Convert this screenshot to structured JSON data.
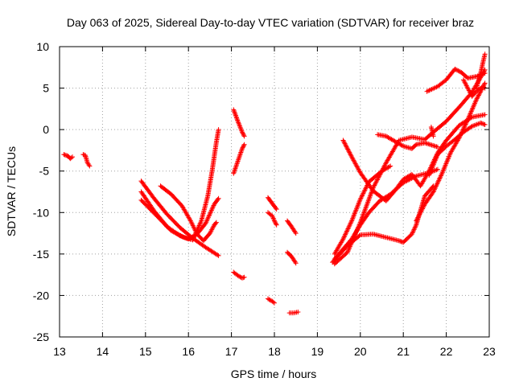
{
  "chart_data": {
    "type": "scatter",
    "title": "Day 063 of 2025, Sidereal Day-to-day VTEC variation (SDTVAR) for receiver braz",
    "xlabel": "GPS time / hours",
    "ylabel": "SDTVAR / TECUs",
    "xlim": [
      13,
      23
    ],
    "ylim": [
      -25,
      10
    ],
    "xticks": [
      13,
      14,
      15,
      16,
      17,
      18,
      19,
      20,
      21,
      22,
      23
    ],
    "yticks": [
      -25,
      -20,
      -15,
      -10,
      -5,
      0,
      5,
      10
    ],
    "grid": true,
    "marker": "+",
    "color": "#ff0000",
    "series": [
      {
        "name": "s1",
        "points": [
          [
            13.1,
            -3.0
          ],
          [
            13.2,
            -3.2
          ],
          [
            13.25,
            -3.5
          ],
          [
            13.3,
            -3.3
          ]
        ]
      },
      {
        "name": "s2",
        "points": [
          [
            13.55,
            -3.0
          ],
          [
            13.6,
            -3.1
          ],
          [
            13.65,
            -4.0
          ],
          [
            13.7,
            -4.4
          ]
        ]
      },
      {
        "name": "s3",
        "points": [
          [
            14.9,
            -6.2
          ],
          [
            15.2,
            -8.3
          ],
          [
            15.5,
            -10.2
          ],
          [
            15.8,
            -11.8
          ],
          [
            16.1,
            -13.1
          ],
          [
            16.4,
            -14.2
          ],
          [
            16.7,
            -15.2
          ]
        ]
      },
      {
        "name": "s4",
        "points": [
          [
            14.9,
            -7.5
          ],
          [
            15.2,
            -9.8
          ],
          [
            15.5,
            -11.7
          ],
          [
            15.8,
            -12.8
          ],
          [
            16.0,
            -13.2
          ],
          [
            16.2,
            -12.6
          ],
          [
            16.4,
            -11.3
          ],
          [
            16.6,
            -9.0
          ],
          [
            16.7,
            -8.3
          ]
        ]
      },
      {
        "name": "s5",
        "points": [
          [
            14.9,
            -8.5
          ],
          [
            15.3,
            -10.6
          ],
          [
            15.6,
            -12.2
          ],
          [
            15.9,
            -13.0
          ],
          [
            16.1,
            -13.3
          ],
          [
            16.3,
            -11.0
          ],
          [
            16.45,
            -8.0
          ],
          [
            16.55,
            -5.0
          ],
          [
            16.65,
            -1.5
          ],
          [
            16.7,
            0
          ]
        ]
      },
      {
        "name": "s6",
        "points": [
          [
            15.35,
            -6.8
          ],
          [
            15.6,
            -7.8
          ],
          [
            15.85,
            -9.2
          ],
          [
            16.05,
            -11.0
          ],
          [
            16.2,
            -12.6
          ],
          [
            16.35,
            -13.4
          ],
          [
            16.5,
            -12.5
          ],
          [
            16.6,
            -11.5
          ],
          [
            16.65,
            -11.2
          ]
        ]
      },
      {
        "name": "s7",
        "points": [
          [
            17.05,
            2.4
          ],
          [
            17.15,
            1.0
          ],
          [
            17.25,
            -0.3
          ],
          [
            17.3,
            -0.8
          ]
        ]
      },
      {
        "name": "s8",
        "points": [
          [
            17.05,
            -5.3
          ],
          [
            17.15,
            -3.8
          ],
          [
            17.25,
            -2.3
          ],
          [
            17.3,
            -1.8
          ]
        ]
      },
      {
        "name": "s9",
        "points": [
          [
            17.05,
            -17.2
          ],
          [
            17.15,
            -17.6
          ],
          [
            17.25,
            -17.9
          ],
          [
            17.3,
            -17.8
          ]
        ]
      },
      {
        "name": "s10",
        "points": [
          [
            17.85,
            -8.2
          ],
          [
            17.95,
            -8.9
          ],
          [
            18.05,
            -9.6
          ]
        ]
      },
      {
        "name": "s11",
        "points": [
          [
            17.85,
            -10.0
          ],
          [
            17.95,
            -10.4
          ],
          [
            18.0,
            -11.0
          ],
          [
            18.05,
            -11.5
          ]
        ]
      },
      {
        "name": "s12",
        "points": [
          [
            17.85,
            -20.4
          ],
          [
            17.95,
            -20.7
          ],
          [
            18.0,
            -20.9
          ]
        ]
      },
      {
        "name": "s13",
        "points": [
          [
            18.3,
            -11.0
          ],
          [
            18.4,
            -11.7
          ],
          [
            18.5,
            -12.5
          ]
        ]
      },
      {
        "name": "s14",
        "points": [
          [
            18.3,
            -14.8
          ],
          [
            18.4,
            -15.3
          ],
          [
            18.5,
            -16.1
          ]
        ]
      },
      {
        "name": "s15",
        "points": [
          [
            18.35,
            -22.1
          ],
          [
            18.45,
            -22.1
          ],
          [
            18.55,
            -22.0
          ]
        ]
      },
      {
        "name": "s16",
        "points": [
          [
            19.35,
            -16.0
          ],
          [
            19.7,
            -14.0
          ],
          [
            20.0,
            -12.7
          ],
          [
            20.3,
            -12.6
          ],
          [
            20.6,
            -13.0
          ],
          [
            20.9,
            -13.4
          ],
          [
            21.0,
            -13.6
          ],
          [
            21.2,
            -12.6
          ],
          [
            21.3,
            -11.5
          ],
          [
            21.5,
            -8.0
          ],
          [
            21.7,
            -6.8
          ]
        ]
      },
      {
        "name": "s17",
        "points": [
          [
            19.4,
            -15.6
          ],
          [
            19.6,
            -14.4
          ],
          [
            19.8,
            -13.2
          ],
          [
            20.0,
            -11.5
          ],
          [
            20.2,
            -10.0
          ],
          [
            20.45,
            -8.6
          ],
          [
            20.7,
            -7.8
          ],
          [
            21.0,
            -6.4
          ],
          [
            21.3,
            -5.6
          ],
          [
            21.6,
            -5.2
          ],
          [
            21.8,
            -4.8
          ]
        ]
      },
      {
        "name": "s18",
        "points": [
          [
            19.4,
            -15.0
          ],
          [
            19.6,
            -13.2
          ],
          [
            19.8,
            -11.0
          ],
          [
            20.0,
            -8.4
          ],
          [
            20.2,
            -6.3
          ],
          [
            20.5,
            -5.0
          ],
          [
            20.7,
            -4.4
          ]
        ]
      },
      {
        "name": "s19",
        "points": [
          [
            19.6,
            -1.3
          ],
          [
            19.8,
            -3.3
          ],
          [
            20.0,
            -5.2
          ],
          [
            20.3,
            -7.4
          ],
          [
            20.6,
            -8.6
          ],
          [
            20.8,
            -7.4
          ],
          [
            21.0,
            -6.0
          ],
          [
            21.2,
            -5.4
          ],
          [
            21.4,
            -6.8
          ],
          [
            21.6,
            -5.0
          ],
          [
            21.8,
            -2.8
          ],
          [
            22.0,
            -1.3
          ],
          [
            22.3,
            0.5
          ],
          [
            22.6,
            1.5
          ],
          [
            22.9,
            1.8
          ]
        ]
      },
      {
        "name": "s20",
        "points": [
          [
            19.4,
            -16.2
          ],
          [
            19.7,
            -14.8
          ],
          [
            20.0,
            -11.2
          ],
          [
            20.3,
            -7.0
          ],
          [
            20.6,
            -4.0
          ],
          [
            20.9,
            -1.3
          ],
          [
            21.2,
            -0.9
          ],
          [
            21.5,
            -1.2
          ],
          [
            21.7,
            -0.3
          ],
          [
            22.0,
            1.0
          ],
          [
            22.3,
            2.7
          ],
          [
            22.6,
            4.5
          ],
          [
            22.9,
            7.2
          ]
        ]
      },
      {
        "name": "s21",
        "points": [
          [
            20.4,
            -0.6
          ],
          [
            20.6,
            -0.8
          ],
          [
            20.9,
            -1.7
          ],
          [
            21.0,
            -2.0
          ],
          [
            21.2,
            -2.3
          ],
          [
            21.3,
            -1.8
          ],
          [
            21.5,
            -1.6
          ],
          [
            21.8,
            -2.1
          ]
        ]
      },
      {
        "name": "s22",
        "points": [
          [
            21.6,
            -5.5
          ],
          [
            21.8,
            -3.0
          ],
          [
            22.0,
            -2.0
          ],
          [
            22.2,
            -1.2
          ],
          [
            22.4,
            -0.3
          ],
          [
            22.6,
            0.4
          ],
          [
            22.8,
            0.8
          ],
          [
            22.9,
            0.6
          ]
        ]
      },
      {
        "name": "s23",
        "points": [
          [
            21.3,
            -11.0
          ],
          [
            21.5,
            -9.0
          ],
          [
            21.7,
            -7.5
          ],
          [
            21.9,
            -5.3
          ],
          [
            22.1,
            -2.8
          ],
          [
            22.3,
            -1.0
          ],
          [
            22.5,
            1.2
          ],
          [
            22.7,
            3.6
          ],
          [
            22.9,
            5.6
          ]
        ]
      },
      {
        "name": "s24",
        "points": [
          [
            21.55,
            4.6
          ],
          [
            21.8,
            5.2
          ],
          [
            22.0,
            6.0
          ],
          [
            22.2,
            7.3
          ],
          [
            22.35,
            6.9
          ],
          [
            22.5,
            6.2
          ],
          [
            22.7,
            6.4
          ],
          [
            22.85,
            6.7
          ],
          [
            22.9,
            6.8
          ]
        ]
      },
      {
        "name": "s25",
        "points": [
          [
            22.4,
            6.0
          ],
          [
            22.5,
            5.0
          ],
          [
            22.6,
            4.0
          ],
          [
            22.7,
            4.6
          ],
          [
            22.85,
            5.2
          ],
          [
            22.9,
            5.0
          ]
        ]
      },
      {
        "name": "s26",
        "points": [
          [
            22.7,
            5.0
          ],
          [
            22.8,
            6.8
          ],
          [
            22.85,
            8.0
          ],
          [
            22.9,
            9.1
          ]
        ]
      },
      {
        "name": "s27",
        "points": [
          [
            21.65,
            0.3
          ],
          [
            21.7,
            -0.8
          ]
        ]
      }
    ]
  }
}
